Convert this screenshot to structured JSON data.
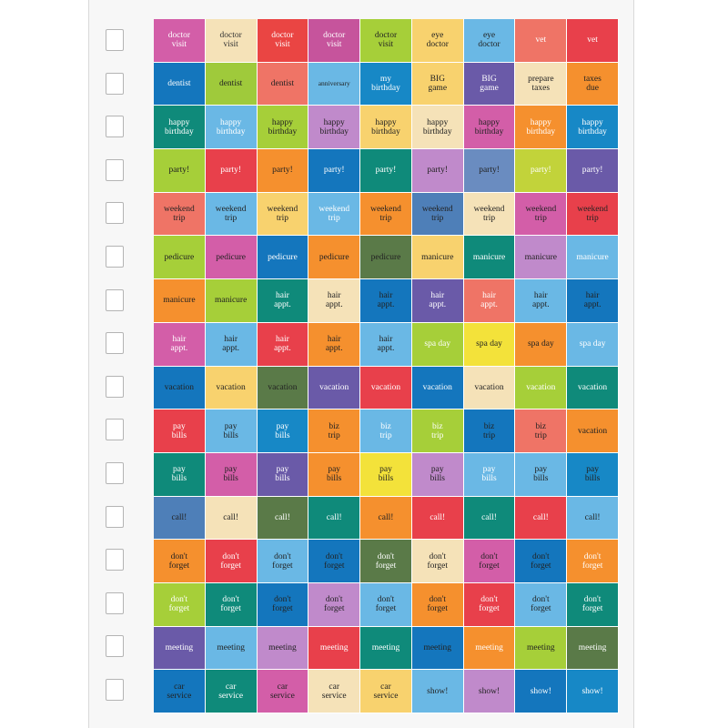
{
  "sheet": {
    "rows": [
      [
        [
          "doctor\nvisit",
          "#d35ea8",
          "#ffffff"
        ],
        [
          "doctor\nvisit",
          "#f5e2b8",
          "#333333"
        ],
        [
          "doctor\nvisit",
          "#ea4543",
          "#ffffff"
        ],
        [
          "doctor\nvisit",
          "#c6549c",
          "#ffffff"
        ],
        [
          "doctor\nvisit",
          "#a6cf39",
          "#222222"
        ],
        [
          "eye\ndoctor",
          "#f8d26e",
          "#222222"
        ],
        [
          "eye\ndoctor",
          "#6ab8e5",
          "#222222"
        ],
        [
          "vet",
          "#ef7466",
          "#ffffff"
        ],
        [
          "vet",
          "#e8404b",
          "#ffffff"
        ]
      ],
      [
        [
          "dentist",
          "#1476bd",
          "#ffffff"
        ],
        [
          "dentist",
          "#9fca3b",
          "#222222"
        ],
        [
          "dentist",
          "#ef7466",
          "#222222"
        ],
        [
          "anniversary",
          "#6ab8e5",
          "#222222"
        ],
        [
          "my\nbirthday",
          "#1788c6",
          "#ffffff"
        ],
        [
          "BIG\ngame",
          "#f8d26e",
          "#222222"
        ],
        [
          "BIG\ngame",
          "#6a5aa8",
          "#ffffff"
        ],
        [
          "prepare\ntaxes",
          "#f5e2b8",
          "#222222"
        ],
        [
          "taxes\ndue",
          "#f5902e",
          "#222222"
        ]
      ],
      [
        [
          "happy\nbirthday",
          "#0f8a7a",
          "#ffffff"
        ],
        [
          "happy\nbirthday",
          "#6ab8e5",
          "#ffffff"
        ],
        [
          "happy\nbirthday",
          "#a6cf39",
          "#222222"
        ],
        [
          "happy\nbirthday",
          "#c08acb",
          "#222222"
        ],
        [
          "happy\nbirthday",
          "#f8d26e",
          "#222222"
        ],
        [
          "happy\nbirthday",
          "#f5e2b8",
          "#222222"
        ],
        [
          "happy\nbirthday",
          "#d35ea8",
          "#222222"
        ],
        [
          "happy\nbirthday",
          "#f5902e",
          "#ffffff"
        ],
        [
          "happy\nbirthday",
          "#1788c6",
          "#ffffff"
        ]
      ],
      [
        [
          "party!",
          "#a6cf39",
          "#222222"
        ],
        [
          "party!",
          "#e8404b",
          "#ffffff"
        ],
        [
          "party!",
          "#f5902e",
          "#222222"
        ],
        [
          "party!",
          "#1476bd",
          "#ffffff"
        ],
        [
          "party!",
          "#0f8a7a",
          "#ffffff"
        ],
        [
          "party!",
          "#c08acb",
          "#222222"
        ],
        [
          "party!",
          "#6a8cc0",
          "#222222"
        ],
        [
          "party!",
          "#c2d33a",
          "#ffffff"
        ],
        [
          "party!",
          "#6a5aa8",
          "#ffffff"
        ]
      ],
      [
        [
          "weekend\ntrip",
          "#ef7466",
          "#222222"
        ],
        [
          "weekend\ntrip",
          "#6ab8e5",
          "#222222"
        ],
        [
          "weekend\ntrip",
          "#f8d26e",
          "#222222"
        ],
        [
          "weekend\ntrip",
          "#6ab8e5",
          "#ffffff"
        ],
        [
          "weekend\ntrip",
          "#f5902e",
          "#222222"
        ],
        [
          "weekend\ntrip",
          "#4e7fb8",
          "#222222"
        ],
        [
          "weekend\ntrip",
          "#f5e2b8",
          "#222222"
        ],
        [
          "weekend\ntrip",
          "#d35ea8",
          "#222222"
        ],
        [
          "weekend\ntrip",
          "#e8404b",
          "#222222"
        ]
      ],
      [
        [
          "pedicure",
          "#a6cf39",
          "#222222"
        ],
        [
          "pedicure",
          "#d35ea8",
          "#222222"
        ],
        [
          "pedicure",
          "#1476bd",
          "#ffffff"
        ],
        [
          "pedicure",
          "#f5902e",
          "#222222"
        ],
        [
          "pedicure",
          "#5a7a48",
          "#222222"
        ],
        [
          "manicure",
          "#f8d26e",
          "#222222"
        ],
        [
          "manicure",
          "#0f8a7a",
          "#ffffff"
        ],
        [
          "manicure",
          "#c08acb",
          "#222222"
        ],
        [
          "manicure",
          "#6ab8e5",
          "#ffffff"
        ]
      ],
      [
        [
          "manicure",
          "#f5902e",
          "#222222"
        ],
        [
          "manicure",
          "#a6cf39",
          "#222222"
        ],
        [
          "hair\nappt.",
          "#0f8a7a",
          "#ffffff"
        ],
        [
          "hair\nappt.",
          "#f5e2b8",
          "#222222"
        ],
        [
          "hair\nappt.",
          "#1476bd",
          "#222222"
        ],
        [
          "hair\nappt.",
          "#6a5aa8",
          "#ffffff"
        ],
        [
          "hair\nappt.",
          "#ef7466",
          "#ffffff"
        ],
        [
          "hair\nappt.",
          "#6ab8e5",
          "#222222"
        ],
        [
          "hair\nappt.",
          "#1476bd",
          "#222222"
        ]
      ],
      [
        [
          "hair\nappt.",
          "#d35ea8",
          "#ffffff"
        ],
        [
          "hair\nappt.",
          "#6ab8e5",
          "#222222"
        ],
        [
          "hair\nappt.",
          "#e8404b",
          "#ffffff"
        ],
        [
          "hair\nappt.",
          "#f5902e",
          "#222222"
        ],
        [
          "hair\nappt.",
          "#6ab8e5",
          "#222222"
        ],
        [
          "spa day",
          "#a6cf39",
          "#ffffff"
        ],
        [
          "spa day",
          "#f3e23a",
          "#222222"
        ],
        [
          "spa day",
          "#f5902e",
          "#222222"
        ],
        [
          "spa day",
          "#6ab8e5",
          "#ffffff"
        ]
      ],
      [
        [
          "vacation",
          "#1476bd",
          "#222222"
        ],
        [
          "vacation",
          "#f8d26e",
          "#222222"
        ],
        [
          "vacation",
          "#5a7a48",
          "#222222"
        ],
        [
          "vacation",
          "#6a5aa8",
          "#ffffff"
        ],
        [
          "vacation",
          "#e8404b",
          "#ffffff"
        ],
        [
          "vacation",
          "#1476bd",
          "#ffffff"
        ],
        [
          "vacation",
          "#f5e2b8",
          "#222222"
        ],
        [
          "vacation",
          "#a6cf39",
          "#ffffff"
        ],
        [
          "vacation",
          "#0f8a7a",
          "#ffffff"
        ]
      ],
      [
        [
          "pay\nbills",
          "#e8404b",
          "#ffffff"
        ],
        [
          "pay\nbills",
          "#6ab8e5",
          "#222222"
        ],
        [
          "pay\nbills",
          "#1788c6",
          "#ffffff"
        ],
        [
          "biz\ntrip",
          "#f5902e",
          "#222222"
        ],
        [
          "biz\ntrip",
          "#6ab8e5",
          "#ffffff"
        ],
        [
          "biz\ntrip",
          "#a6cf39",
          "#ffffff"
        ],
        [
          "biz\ntrip",
          "#1476bd",
          "#222222"
        ],
        [
          "biz\ntrip",
          "#ef7466",
          "#222222"
        ],
        [
          "vacation",
          "#f5902e",
          "#222222"
        ]
      ],
      [
        [
          "pay\nbills",
          "#0f8a7a",
          "#ffffff"
        ],
        [
          "pay\nbills",
          "#d35ea8",
          "#222222"
        ],
        [
          "pay\nbills",
          "#6a5aa8",
          "#ffffff"
        ],
        [
          "pay\nbills",
          "#f5902e",
          "#222222"
        ],
        [
          "pay\nbills",
          "#f3e23a",
          "#222222"
        ],
        [
          "pay\nbills",
          "#c08acb",
          "#222222"
        ],
        [
          "pay\nbills",
          "#6ab8e5",
          "#ffffff"
        ],
        [
          "pay\nbills",
          "#6ab8e5",
          "#222222"
        ],
        [
          "pay\nbills",
          "#1788c6",
          "#222222"
        ]
      ],
      [
        [
          "call!",
          "#4e7fb8",
          "#222222"
        ],
        [
          "call!",
          "#f5e2b8",
          "#222222"
        ],
        [
          "call!",
          "#5a7a48",
          "#ffffff"
        ],
        [
          "call!",
          "#0f8a7a",
          "#ffffff"
        ],
        [
          "call!",
          "#f5902e",
          "#222222"
        ],
        [
          "call!",
          "#e8404b",
          "#ffffff"
        ],
        [
          "call!",
          "#0f8a7a",
          "#ffffff"
        ],
        [
          "call!",
          "#e8404b",
          "#ffffff"
        ],
        [
          "call!",
          "#6ab8e5",
          "#222222"
        ]
      ],
      [
        [
          "don't\nforget",
          "#f5902e",
          "#222222"
        ],
        [
          "don't\nforget",
          "#e8404b",
          "#ffffff"
        ],
        [
          "don't\nforget",
          "#6ab8e5",
          "#222222"
        ],
        [
          "don't\nforget",
          "#1476bd",
          "#222222"
        ],
        [
          "don't\nforget",
          "#5a7a48",
          "#ffffff"
        ],
        [
          "don't\nforget",
          "#f5e2b8",
          "#222222"
        ],
        [
          "don't\nforget",
          "#d35ea8",
          "#222222"
        ],
        [
          "don't\nforget",
          "#1476bd",
          "#222222"
        ],
        [
          "don't\nforget",
          "#f5902e",
          "#ffffff"
        ]
      ],
      [
        [
          "don't\nforget",
          "#a6cf39",
          "#ffffff"
        ],
        [
          "don't\nforget",
          "#0f8a7a",
          "#ffffff"
        ],
        [
          "don't\nforget",
          "#1476bd",
          "#222222"
        ],
        [
          "don't\nforget",
          "#c08acb",
          "#222222"
        ],
        [
          "don't\nforget",
          "#6ab8e5",
          "#222222"
        ],
        [
          "don't\nforget",
          "#f5902e",
          "#222222"
        ],
        [
          "don't\nforget",
          "#e8404b",
          "#ffffff"
        ],
        [
          "don't\nforget",
          "#6ab8e5",
          "#222222"
        ],
        [
          "don't\nforget",
          "#0f8a7a",
          "#ffffff"
        ]
      ],
      [
        [
          "meeting",
          "#6a5aa8",
          "#ffffff"
        ],
        [
          "meeting",
          "#6ab8e5",
          "#222222"
        ],
        [
          "meeting",
          "#c08acb",
          "#222222"
        ],
        [
          "meeting",
          "#e8404b",
          "#ffffff"
        ],
        [
          "meeting",
          "#0f8a7a",
          "#ffffff"
        ],
        [
          "meeting",
          "#1476bd",
          "#222222"
        ],
        [
          "meeting",
          "#f5902e",
          "#ffffff"
        ],
        [
          "meeting",
          "#a6cf39",
          "#222222"
        ],
        [
          "meeting",
          "#5a7a48",
          "#ffffff"
        ]
      ],
      [
        [
          "car\nservice",
          "#1476bd",
          "#222222"
        ],
        [
          "car\nservice",
          "#0f8a7a",
          "#ffffff"
        ],
        [
          "car\nservice",
          "#d35ea8",
          "#222222"
        ],
        [
          "car\nservice",
          "#f5e2b8",
          "#222222"
        ],
        [
          "car\nservice",
          "#f8d26e",
          "#222222"
        ],
        [
          "show!",
          "#6ab8e5",
          "#222222"
        ],
        [
          "show!",
          "#c08acb",
          "#222222"
        ],
        [
          "show!",
          "#1476bd",
          "#ffffff"
        ],
        [
          "show!",
          "#1788c6",
          "#ffffff"
        ]
      ]
    ]
  }
}
